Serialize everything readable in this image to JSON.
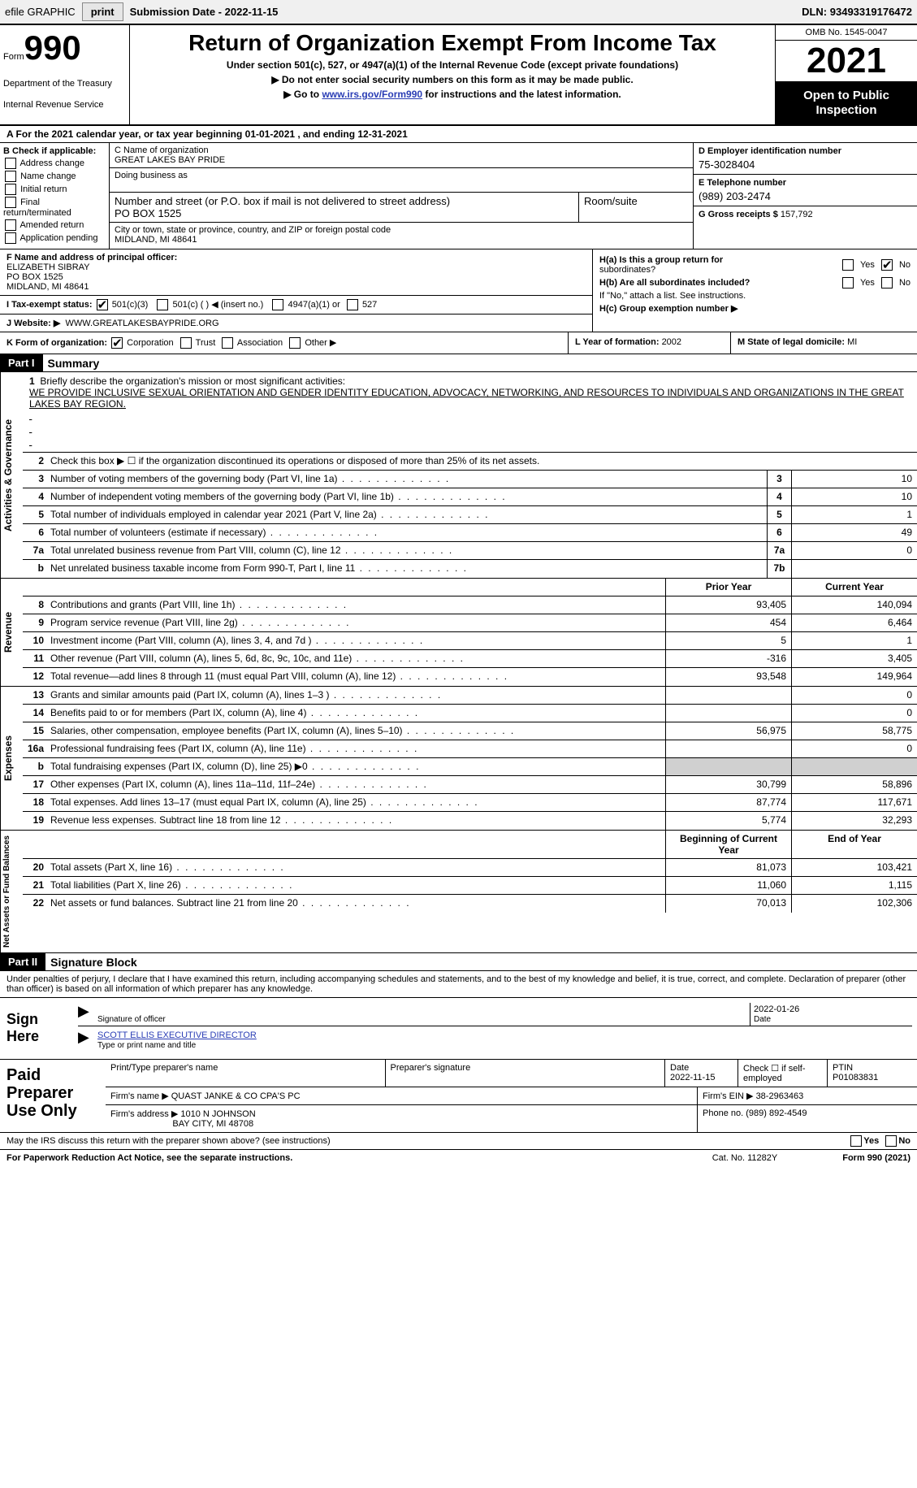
{
  "topbar": {
    "efile": "efile GRAPHIC",
    "print": "print",
    "subdate_label": "Submission Date - ",
    "subdate": "2022-11-15",
    "dln_label": "DLN: ",
    "dln": "93493319176472"
  },
  "header": {
    "form_label": "Form",
    "form_num": "990",
    "dept": "Department of the Treasury",
    "irs": "Internal Revenue Service",
    "title": "Return of Organization Exempt From Income Tax",
    "subtitle": "Under section 501(c), 527, or 4947(a)(1) of the Internal Revenue Code (except private foundations)",
    "note1": "▶ Do not enter social security numbers on this form as it may be made public.",
    "note2_pre": "▶ Go to ",
    "note2_link": "www.irs.gov/Form990",
    "note2_post": " for instructions and the latest information.",
    "omb": "OMB No. 1545-0047",
    "year": "2021",
    "open": "Open to Public Inspection"
  },
  "lineA": "A For the 2021 calendar year, or tax year beginning 01-01-2021   , and ending 12-31-2021",
  "colB": {
    "label": "B Check if applicable:",
    "opts": [
      "Address change",
      "Name change",
      "Initial return",
      "Final return/terminated",
      "Amended return",
      "Application pending"
    ]
  },
  "colC": {
    "name_lbl": "C Name of organization",
    "name": "GREAT LAKES BAY PRIDE",
    "dba_lbl": "Doing business as",
    "addr_lbl": "Number and street (or P.O. box if mail is not delivered to street address)",
    "room_lbl": "Room/suite",
    "addr": "PO BOX 1525",
    "city_lbl": "City or town, state or province, country, and ZIP or foreign postal code",
    "city": "MIDLAND, MI  48641"
  },
  "colD": {
    "ein_lbl": "D Employer identification number",
    "ein": "75-3028404",
    "tel_lbl": "E Telephone number",
    "tel": "(989) 203-2474",
    "gross_lbl": "G Gross receipts $ ",
    "gross": "157,792"
  },
  "secF": {
    "f_lbl": "F Name and address of principal officer:",
    "f_name": "ELIZABETH SIBRAY",
    "f_addr1": "PO BOX 1525",
    "f_addr2": "MIDLAND, MI  48641",
    "i_lbl": "I   Tax-exempt status:",
    "i_501c3": "501(c)(3)",
    "i_501c": "501(c) (  ) ◀ (insert no.)",
    "i_4947": "4947(a)(1) or",
    "i_527": "527",
    "j_lbl": "J   Website: ▶",
    "j_val": "WWW.GREATLAKESBAYPRIDE.ORG"
  },
  "secH": {
    "ha_lbl": "H(a)  Is this a group return for",
    "ha_lbl2": "subordinates?",
    "hb_lbl": "H(b)  Are all subordinates included?",
    "hb_note": "If \"No,\" attach a list. See instructions.",
    "hc_lbl": "H(c)  Group exemption number ▶",
    "yes": "Yes",
    "no": "No"
  },
  "secK": {
    "k_lbl": "K Form of organization:",
    "k_corp": "Corporation",
    "k_trust": "Trust",
    "k_assoc": "Association",
    "k_other": "Other ▶",
    "l_lbl": "L Year of formation: ",
    "l_val": "2002",
    "m_lbl": "M State of legal domicile: ",
    "m_val": "MI"
  },
  "part1": {
    "hdr": "Part I",
    "title": "Summary"
  },
  "mission": {
    "num": "1",
    "lbl": "Briefly describe the organization's mission or most significant activities:",
    "text": "WE PROVIDE INCLUSIVE SEXUAL ORIENTATION AND GENDER IDENTITY EDUCATION, ADVOCACY, NETWORKING, AND RESOURCES TO INDIVIDUALS AND ORGANIZATIONS IN THE GREAT LAKES BAY REGION."
  },
  "line2": "Check this box ▶ ☐  if the organization discontinued its operations or disposed of more than 25% of its net assets.",
  "vtabs": {
    "gov": "Activities & Governance",
    "rev": "Revenue",
    "exp": "Expenses",
    "net": "Net Assets or Fund Balances"
  },
  "govrows": [
    {
      "n": "3",
      "d": "Number of voting members of the governing body (Part VI, line 1a)",
      "b": "3",
      "v": "10"
    },
    {
      "n": "4",
      "d": "Number of independent voting members of the governing body (Part VI, line 1b)",
      "b": "4",
      "v": "10"
    },
    {
      "n": "5",
      "d": "Total number of individuals employed in calendar year 2021 (Part V, line 2a)",
      "b": "5",
      "v": "1"
    },
    {
      "n": "6",
      "d": "Total number of volunteers (estimate if necessary)",
      "b": "6",
      "v": "49"
    },
    {
      "n": "7a",
      "d": "Total unrelated business revenue from Part VIII, column (C), line 12",
      "b": "7a",
      "v": "0"
    },
    {
      "n": "b",
      "d": "Net unrelated business taxable income from Form 990-T, Part I, line 11",
      "b": "7b",
      "v": ""
    }
  ],
  "cols": {
    "prior": "Prior Year",
    "current": "Current Year",
    "boy": "Beginning of Current Year",
    "eoy": "End of Year"
  },
  "revrows": [
    {
      "n": "8",
      "d": "Contributions and grants (Part VIII, line 1h)",
      "p": "93,405",
      "c": "140,094"
    },
    {
      "n": "9",
      "d": "Program service revenue (Part VIII, line 2g)",
      "p": "454",
      "c": "6,464"
    },
    {
      "n": "10",
      "d": "Investment income (Part VIII, column (A), lines 3, 4, and 7d )",
      "p": "5",
      "c": "1"
    },
    {
      "n": "11",
      "d": "Other revenue (Part VIII, column (A), lines 5, 6d, 8c, 9c, 10c, and 11e)",
      "p": "-316",
      "c": "3,405"
    },
    {
      "n": "12",
      "d": "Total revenue—add lines 8 through 11 (must equal Part VIII, column (A), line 12)",
      "p": "93,548",
      "c": "149,964"
    }
  ],
  "exprows": [
    {
      "n": "13",
      "d": "Grants and similar amounts paid (Part IX, column (A), lines 1–3 )",
      "p": "",
      "c": "0"
    },
    {
      "n": "14",
      "d": "Benefits paid to or for members (Part IX, column (A), line 4)",
      "p": "",
      "c": "0"
    },
    {
      "n": "15",
      "d": "Salaries, other compensation, employee benefits (Part IX, column (A), lines 5–10)",
      "p": "56,975",
      "c": "58,775"
    },
    {
      "n": "16a",
      "d": "Professional fundraising fees (Part IX, column (A), line 11e)",
      "p": "",
      "c": "0"
    },
    {
      "n": "b",
      "d": "Total fundraising expenses (Part IX, column (D), line 25) ▶0",
      "p": "shaded",
      "c": "shaded"
    },
    {
      "n": "17",
      "d": "Other expenses (Part IX, column (A), lines 11a–11d, 11f–24e)",
      "p": "30,799",
      "c": "58,896"
    },
    {
      "n": "18",
      "d": "Total expenses. Add lines 13–17 (must equal Part IX, column (A), line 25)",
      "p": "87,774",
      "c": "117,671"
    },
    {
      "n": "19",
      "d": "Revenue less expenses. Subtract line 18 from line 12",
      "p": "5,774",
      "c": "32,293"
    }
  ],
  "netrows": [
    {
      "n": "20",
      "d": "Total assets (Part X, line 16)",
      "p": "81,073",
      "c": "103,421"
    },
    {
      "n": "21",
      "d": "Total liabilities (Part X, line 26)",
      "p": "11,060",
      "c": "1,115"
    },
    {
      "n": "22",
      "d": "Net assets or fund balances. Subtract line 21 from line 20",
      "p": "70,013",
      "c": "102,306"
    }
  ],
  "part2": {
    "hdr": "Part II",
    "title": "Signature Block"
  },
  "sigdecl": "Under penalties of perjury, I declare that I have examined this return, including accompanying schedules and statements, and to the best of my knowledge and belief, it is true, correct, and complete. Declaration of preparer (other than officer) is based on all information of which preparer has any knowledge.",
  "sign": {
    "here": "Sign Here",
    "sig_lbl": "Signature of officer",
    "date_lbl": "Date",
    "date": "2022-01-26",
    "name": "SCOTT ELLIS  EXECUTIVE DIRECTOR",
    "name_lbl": "Type or print name and title"
  },
  "prep": {
    "hdr": "Paid Preparer Use Only",
    "pt_name_lbl": "Print/Type preparer's name",
    "sig_lbl": "Preparer's signature",
    "date_lbl": "Date",
    "date": "2022-11-15",
    "check_lbl": "Check ☐ if self-employed",
    "ptin_lbl": "PTIN",
    "ptin": "P01083831",
    "firm_name_lbl": "Firm's name     ▶ ",
    "firm_name": "QUAST JANKE & CO CPA'S PC",
    "firm_ein_lbl": "Firm's EIN ▶ ",
    "firm_ein": "38-2963463",
    "firm_addr_lbl": "Firm's address ▶ ",
    "firm_addr1": "1010 N JOHNSON",
    "firm_addr2": "BAY CITY, MI  48708",
    "phone_lbl": "Phone no. ",
    "phone": "(989) 892-4549"
  },
  "discuss": "May the IRS discuss this return with the preparer shown above? (see instructions)",
  "footer": {
    "pra": "For Paperwork Reduction Act Notice, see the separate instructions.",
    "cat": "Cat. No. 11282Y",
    "form": "Form 990 (2021)"
  }
}
